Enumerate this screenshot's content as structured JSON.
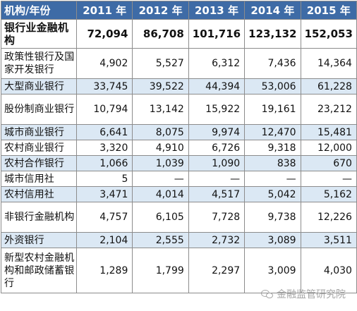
{
  "table": {
    "headers": [
      "机构/年份",
      "2011 年",
      "2012 年",
      "2013 年",
      "2014 年",
      "2015 年"
    ],
    "rows": [
      {
        "label": "银行业金融机构",
        "values": [
          "72,094",
          "86,708",
          "101,716",
          "123,132",
          "152,053"
        ]
      },
      {
        "label": "政策性银行及国家开发银行",
        "values": [
          "4,902",
          "5,527",
          "6,312",
          "7,436",
          "14,364"
        ]
      },
      {
        "label": "大型商业银行",
        "values": [
          "33,745",
          "39,522",
          "44,394",
          "53,006",
          "61,228"
        ]
      },
      {
        "label": "股份制商业银行",
        "values": [
          "10,794",
          "13,142",
          "15,922",
          "19,161",
          "23,212"
        ]
      },
      {
        "label": "城市商业银行",
        "values": [
          "6,641",
          "8,075",
          "9,974",
          "12,470",
          "15,481"
        ]
      },
      {
        "label": "农村商业银行",
        "values": [
          "3,320",
          "4,910",
          "6,726",
          "9,318",
          "12,000"
        ]
      },
      {
        "label": "农村合作银行",
        "values": [
          "1,066",
          "1,039",
          "1,090",
          "838",
          "670"
        ]
      },
      {
        "label": "城市信用社",
        "values": [
          "5",
          "—",
          "—",
          "—",
          "—"
        ]
      },
      {
        "label": "农村信用社",
        "values": [
          "3,471",
          "4,014",
          "4,517",
          "5,042",
          "5,162"
        ]
      },
      {
        "label": "非银行金融机构",
        "values": [
          "4,757",
          "6,105",
          "7,728",
          "9,738",
          "12,226"
        ]
      },
      {
        "label": "外资银行",
        "values": [
          "2,104",
          "2,555",
          "2,732",
          "3,089",
          "3,511"
        ]
      },
      {
        "label": "新型农村金融机构和邮政储蓄银行",
        "values": [
          "1,289",
          "1,799",
          "2,297",
          "3,009",
          "4,030"
        ]
      }
    ]
  },
  "watermark": {
    "text": "金融监管研究院",
    "icon": "wechat-icon"
  },
  "colors": {
    "header_bg": "#3e6ba6",
    "band_bg": "#dbe8f4",
    "border": "#8c8c8c"
  }
}
